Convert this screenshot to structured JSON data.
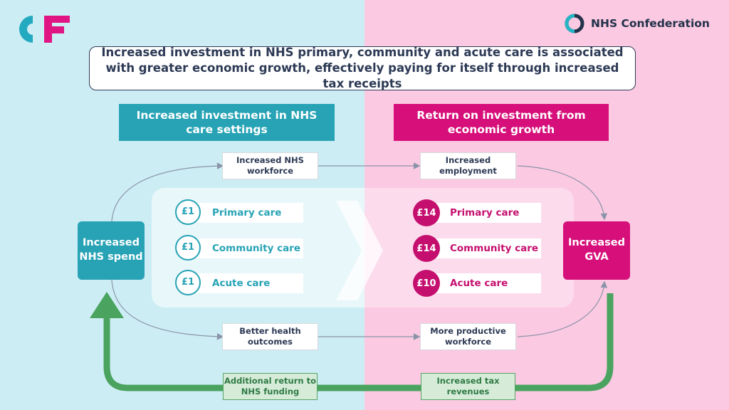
{
  "brand": {
    "cf_logo_text": "CF",
    "nhs_logo_text": "NHS Confederation"
  },
  "headline": "Increased investment in NHS primary, community and acute care is associated with greater economic growth, effectively paying for itself through increased tax receipts",
  "sections": {
    "left_title": "Increased investment in NHS care settings",
    "right_title": "Return on investment from economic growth"
  },
  "nodes": {
    "start": "Increased NHS spend",
    "end": "Increased GVA"
  },
  "flow_top": {
    "left": "Increased NHS workforce",
    "right": "Increased employment"
  },
  "flow_bottom": {
    "left": "Better health outcomes",
    "right": "More productive workforce"
  },
  "feedback": {
    "left": "Additional return to NHS funding",
    "right": "Increased tax revenues"
  },
  "investments": [
    {
      "amount": "£1",
      "label": "Primary care"
    },
    {
      "amount": "£1",
      "label": "Community care"
    },
    {
      "amount": "£1",
      "label": "Acute care"
    }
  ],
  "returns": [
    {
      "amount": "£14",
      "label": "Primary care"
    },
    {
      "amount": "£14",
      "label": "Community care"
    },
    {
      "amount": "£10",
      "label": "Acute care"
    }
  ],
  "colors": {
    "teal": "#27a3b5",
    "magenta": "#d60f7a",
    "green": "#4aa35f",
    "navy": "#2d3a55",
    "bg_left": "#cdedf4",
    "bg_right": "#fbc9e2"
  }
}
